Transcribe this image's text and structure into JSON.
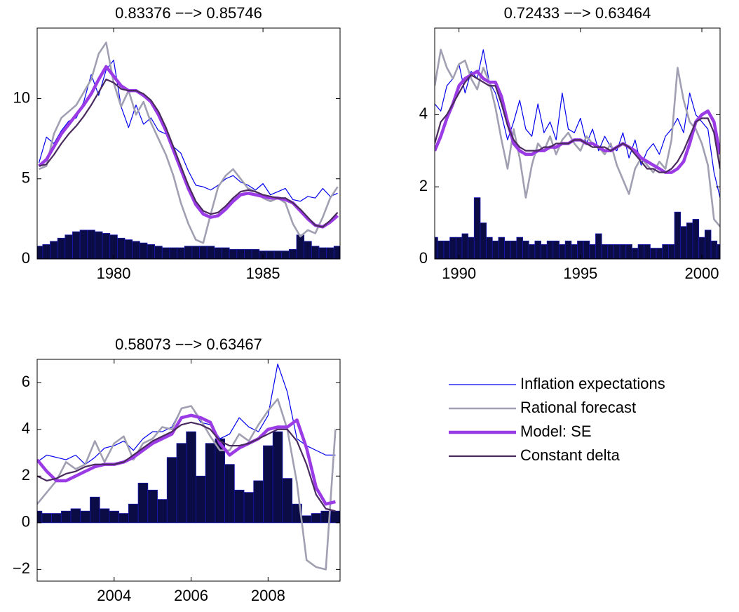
{
  "chart_data": [
    {
      "type": "line",
      "title": "0.83376 −−> 0.85746",
      "x": [
        1977.5,
        1977.75,
        1978,
        1978.25,
        1978.5,
        1978.75,
        1979,
        1979.25,
        1979.5,
        1979.75,
        1980,
        1980.25,
        1980.5,
        1980.75,
        1981,
        1981.25,
        1981.5,
        1981.75,
        1982,
        1982.25,
        1982.5,
        1982.75,
        1983,
        1983.25,
        1983.5,
        1983.75,
        1984,
        1984.25,
        1984.5,
        1984.75,
        1985,
        1985.25,
        1985.5,
        1985.75,
        1986,
        1986.25,
        1986.5,
        1986.75,
        1987,
        1987.25,
        1987.5
      ],
      "bars": {
        "color": "#0b0b45",
        "edge": "#1818b0",
        "values": [
          0.8,
          0.9,
          1.1,
          1.3,
          1.5,
          1.7,
          1.8,
          1.8,
          1.7,
          1.6,
          1.5,
          1.3,
          1.2,
          1.1,
          1.0,
          0.9,
          0.8,
          0.7,
          0.7,
          0.7,
          0.8,
          0.8,
          0.8,
          0.8,
          0.7,
          0.7,
          0.6,
          0.6,
          0.6,
          0.6,
          0.5,
          0.5,
          0.5,
          0.5,
          0.6,
          1.5,
          1.1,
          0.8,
          0.7,
          0.7,
          0.8
        ]
      },
      "series": [
        {
          "color": "#0000ee",
          "linewidth": 1.2,
          "values": [
            6.0,
            7.6,
            7.2,
            8.0,
            8.6,
            8.8,
            9.8,
            11.5,
            10.2,
            11.8,
            12.4,
            9.5,
            8.2,
            9.6,
            8.4,
            8.8,
            8.0,
            7.8,
            7.0,
            6.6,
            5.5,
            4.6,
            4.5,
            4.3,
            4.6,
            5.0,
            5.2,
            4.8,
            4.6,
            4.3,
            4.7,
            4.0,
            4.2,
            4.4,
            3.7,
            3.6,
            3.9,
            3.8,
            4.4,
            3.9,
            4.1
          ]
        },
        {
          "color": "#a0a0b2",
          "linewidth": 2.6,
          "values": [
            5.6,
            5.8,
            7.8,
            8.8,
            9.2,
            9.6,
            10.4,
            11.2,
            12.8,
            13.5,
            11.0,
            9.5,
            10.5,
            9.0,
            9.8,
            8.5,
            7.5,
            6.5,
            5.2,
            3.5,
            2.2,
            1.2,
            1.0,
            2.8,
            4.5,
            5.2,
            5.6,
            5.0,
            4.4,
            4.2,
            3.8,
            3.6,
            3.8,
            3.5,
            2.2,
            1.4,
            1.8,
            1.6,
            2.6,
            3.8,
            4.5
          ]
        },
        {
          "color": "#9b3be6",
          "linewidth": 4.5,
          "values": [
            5.8,
            6.2,
            7.0,
            7.8,
            8.4,
            9.0,
            9.6,
            10.3,
            11.2,
            12.0,
            11.4,
            10.8,
            10.5,
            10.5,
            10.2,
            9.8,
            9.0,
            8.0,
            6.8,
            5.6,
            4.4,
            3.4,
            2.8,
            2.6,
            2.7,
            3.1,
            3.6,
            4.0,
            4.1,
            4.0,
            3.9,
            3.8,
            3.8,
            3.7,
            3.5,
            3.0,
            2.5,
            2.1,
            2.0,
            2.3,
            2.7
          ]
        },
        {
          "color": "#4a2b5e",
          "linewidth": 2.2,
          "values": [
            5.8,
            5.9,
            6.5,
            7.2,
            7.8,
            8.3,
            8.9,
            9.6,
            10.4,
            11.2,
            11.0,
            10.6,
            10.5,
            10.5,
            10.3,
            9.9,
            9.2,
            8.2,
            7.0,
            5.8,
            4.6,
            3.6,
            3.0,
            2.8,
            2.9,
            3.3,
            3.8,
            4.2,
            4.3,
            4.2,
            4.0,
            3.9,
            3.8,
            3.8,
            3.5,
            3.1,
            2.6,
            2.1,
            2.0,
            2.4,
            2.9
          ]
        }
      ],
      "xlim": [
        1977.44,
        1987.58
      ],
      "ylim": [
        0,
        14.4
      ],
      "xticks": [
        1980,
        1985
      ],
      "yticks": [
        0,
        5,
        10
      ],
      "grid": false
    },
    {
      "type": "line",
      "title": "0.72433 −−> 0.63464",
      "x": [
        1989,
        1989.25,
        1989.5,
        1989.75,
        1990,
        1990.25,
        1990.5,
        1990.75,
        1991,
        1991.25,
        1991.5,
        1991.75,
        1992,
        1992.25,
        1992.5,
        1992.75,
        1993,
        1993.25,
        1993.5,
        1993.75,
        1994,
        1994.25,
        1994.5,
        1994.75,
        1995,
        1995.25,
        1995.5,
        1995.75,
        1996,
        1996.25,
        1996.5,
        1996.75,
        1997,
        1997.25,
        1997.5,
        1997.75,
        1998,
        1998.25,
        1998.5,
        1998.75,
        1999,
        1999.25,
        1999.5,
        1999.75,
        2000,
        2000.25,
        2000.5,
        2000.75
      ],
      "bars": {
        "color": "#0b0b45",
        "edge": "#1818b0",
        "values": [
          0.6,
          0.5,
          0.5,
          0.6,
          0.6,
          0.7,
          0.6,
          1.7,
          1.0,
          0.6,
          0.5,
          0.6,
          0.5,
          0.5,
          0.6,
          0.5,
          0.4,
          0.5,
          0.4,
          0.5,
          0.5,
          0.4,
          0.5,
          0.4,
          0.5,
          0.5,
          0.4,
          0.7,
          0.4,
          0.4,
          0.4,
          0.4,
          0.4,
          0.3,
          0.4,
          0.4,
          0.3,
          0.3,
          0.4,
          0.4,
          1.3,
          0.9,
          1.0,
          1.1,
          0.6,
          0.8,
          0.5,
          0.4
        ]
      },
      "series": [
        {
          "color": "#0000ee",
          "linewidth": 1.2,
          "values": [
            4.3,
            4.1,
            4.8,
            5.0,
            5.4,
            4.6,
            5.2,
            5.0,
            5.8,
            4.9,
            4.6,
            4.0,
            3.3,
            3.8,
            4.4,
            3.6,
            3.4,
            4.3,
            3.5,
            3.8,
            3.3,
            4.6,
            3.6,
            3.5,
            3.9,
            3.2,
            3.6,
            3.0,
            3.4,
            3.1,
            3.0,
            3.5,
            2.8,
            3.3,
            2.6,
            3.0,
            3.2,
            2.9,
            3.4,
            3.6,
            3.9,
            3.5,
            4.6,
            4.0,
            3.8,
            3.6,
            2.4,
            1.7
          ]
        },
        {
          "color": "#a0a0b2",
          "linewidth": 2.6,
          "values": [
            4.8,
            5.8,
            5.3,
            5.0,
            5.4,
            5.5,
            5.0,
            4.7,
            5.3,
            4.9,
            4.2,
            3.3,
            2.5,
            3.6,
            2.8,
            1.7,
            2.6,
            3.2,
            3.0,
            3.4,
            2.9,
            3.3,
            3.5,
            3.2,
            3.0,
            3.4,
            3.2,
            3.1,
            2.9,
            3.2,
            2.6,
            2.2,
            1.8,
            2.5,
            2.8,
            2.6,
            2.4,
            2.7,
            2.5,
            3.3,
            5.3,
            4.4,
            3.8,
            3.6,
            3.2,
            2.6,
            1.1,
            0.9
          ]
        },
        {
          "color": "#9b3be6",
          "linewidth": 4.5,
          "values": [
            3.0,
            3.4,
            3.9,
            4.3,
            4.8,
            5.0,
            5.1,
            5.2,
            5.0,
            4.9,
            4.9,
            4.5,
            3.8,
            3.2,
            3.0,
            2.9,
            2.9,
            3.0,
            3.0,
            3.1,
            3.1,
            3.2,
            3.2,
            3.3,
            3.3,
            3.2,
            3.2,
            3.1,
            3.0,
            3.0,
            3.1,
            3.2,
            3.1,
            3.0,
            2.8,
            2.7,
            2.6,
            2.5,
            2.4,
            2.4,
            2.5,
            2.7,
            3.2,
            3.8,
            4.0,
            4.1,
            3.8,
            2.9
          ]
        },
        {
          "color": "#4a2b5e",
          "linewidth": 2.2,
          "values": [
            3.2,
            3.8,
            4.0,
            4.3,
            4.6,
            4.9,
            5.1,
            5.0,
            4.9,
            4.8,
            4.8,
            4.3,
            3.7,
            3.3,
            3.1,
            3.0,
            3.0,
            3.0,
            3.1,
            3.1,
            3.2,
            3.2,
            3.2,
            3.3,
            3.3,
            3.2,
            3.1,
            3.1,
            3.1,
            3.0,
            3.1,
            3.2,
            3.1,
            2.9,
            2.7,
            2.5,
            2.5,
            2.4,
            2.4,
            2.5,
            2.7,
            3.0,
            3.4,
            3.8,
            3.9,
            3.9,
            3.5,
            2.5
          ]
        }
      ],
      "xlim": [
        1989.0,
        2000.75
      ],
      "ylim": [
        0,
        6.4
      ],
      "xticks": [
        1990,
        1995,
        2000
      ],
      "yticks": [
        0,
        2,
        4
      ],
      "grid": false
    },
    {
      "type": "line",
      "title": "0.58073 −−> 0.63467",
      "x": [
        2002,
        2002.25,
        2002.5,
        2002.75,
        2003,
        2003.25,
        2003.5,
        2003.75,
        2004,
        2004.25,
        2004.5,
        2004.75,
        2005,
        2005.25,
        2005.5,
        2005.75,
        2006,
        2006.25,
        2006.5,
        2006.75,
        2007,
        2007.25,
        2007.5,
        2007.75,
        2008,
        2008.25,
        2008.5,
        2008.75,
        2009,
        2009.25,
        2009.5,
        2009.75
      ],
      "bars": {
        "color": "#0b0b45",
        "edge": "#1818b0",
        "values": [
          0.5,
          0.4,
          0.4,
          0.5,
          0.6,
          0.5,
          1.1,
          0.6,
          0.5,
          0.4,
          0.8,
          1.7,
          1.4,
          1.0,
          2.8,
          3.4,
          3.9,
          2.0,
          3.4,
          3.6,
          2.5,
          1.4,
          1.3,
          1.8,
          3.3,
          3.9,
          1.9,
          0.8,
          0.3,
          0.4,
          0.5,
          0.5
        ]
      },
      "series": [
        {
          "name": "Inflation expectations",
          "color": "#0000ee",
          "linewidth": 1.2,
          "values": [
            2.6,
            2.9,
            2.8,
            2.7,
            2.9,
            2.5,
            2.8,
            3.2,
            3.3,
            3.5,
            3.1,
            3.6,
            3.9,
            3.9,
            4.1,
            4.9,
            5.0,
            4.3,
            4.2,
            3.6,
            3.8,
            4.5,
            4.1,
            3.9,
            4.6,
            6.8,
            5.6,
            3.6,
            3.3,
            3.1,
            2.9,
            2.9
          ]
        },
        {
          "name": "Rational forecast",
          "color": "#a0a0b2",
          "linewidth": 2.6,
          "values": [
            0.8,
            1.3,
            1.8,
            2.6,
            2.3,
            2.5,
            3.5,
            2.6,
            3.4,
            3.7,
            2.7,
            3.4,
            3.6,
            4.1,
            4.0,
            4.9,
            5.0,
            4.4,
            3.7,
            3.1,
            3.1,
            3.8,
            3.5,
            4.2,
            4.8,
            5.3,
            4.0,
            1.7,
            -1.6,
            -1.9,
            -2.0,
            4.0
          ]
        },
        {
          "name": "Model: SE",
          "color": "#9b3be6",
          "linewidth": 4.5,
          "values": [
            2.7,
            2.2,
            1.8,
            1.8,
            2.0,
            2.2,
            2.4,
            2.5,
            2.5,
            2.6,
            2.8,
            3.1,
            3.4,
            3.6,
            3.8,
            4.5,
            4.6,
            4.5,
            4.3,
            3.4,
            2.9,
            3.2,
            3.4,
            3.6,
            4.0,
            4.1,
            4.1,
            4.4,
            3.2,
            1.5,
            0.8,
            0.9
          ]
        },
        {
          "name": "Constant delta",
          "color": "#4a2b5e",
          "linewidth": 2.2,
          "values": [
            2.0,
            1.8,
            1.9,
            2.1,
            2.2,
            2.4,
            2.5,
            2.5,
            2.5,
            2.6,
            2.9,
            3.2,
            3.5,
            3.7,
            3.9,
            4.2,
            4.3,
            4.2,
            4.0,
            3.5,
            3.3,
            3.3,
            3.4,
            3.6,
            3.8,
            4.0,
            4.0,
            3.5,
            2.5,
            1.2,
            0.6,
            0.5
          ]
        }
      ],
      "xlim": [
        2002.0,
        2009.87
      ],
      "ylim": [
        -2.5,
        7
      ],
      "xticks": [
        2004,
        2006,
        2008
      ],
      "yticks": [
        {
          "value": -2,
          "label": "−2"
        },
        0,
        2,
        4,
        6
      ],
      "grid": false,
      "legend": "outside right"
    }
  ]
}
